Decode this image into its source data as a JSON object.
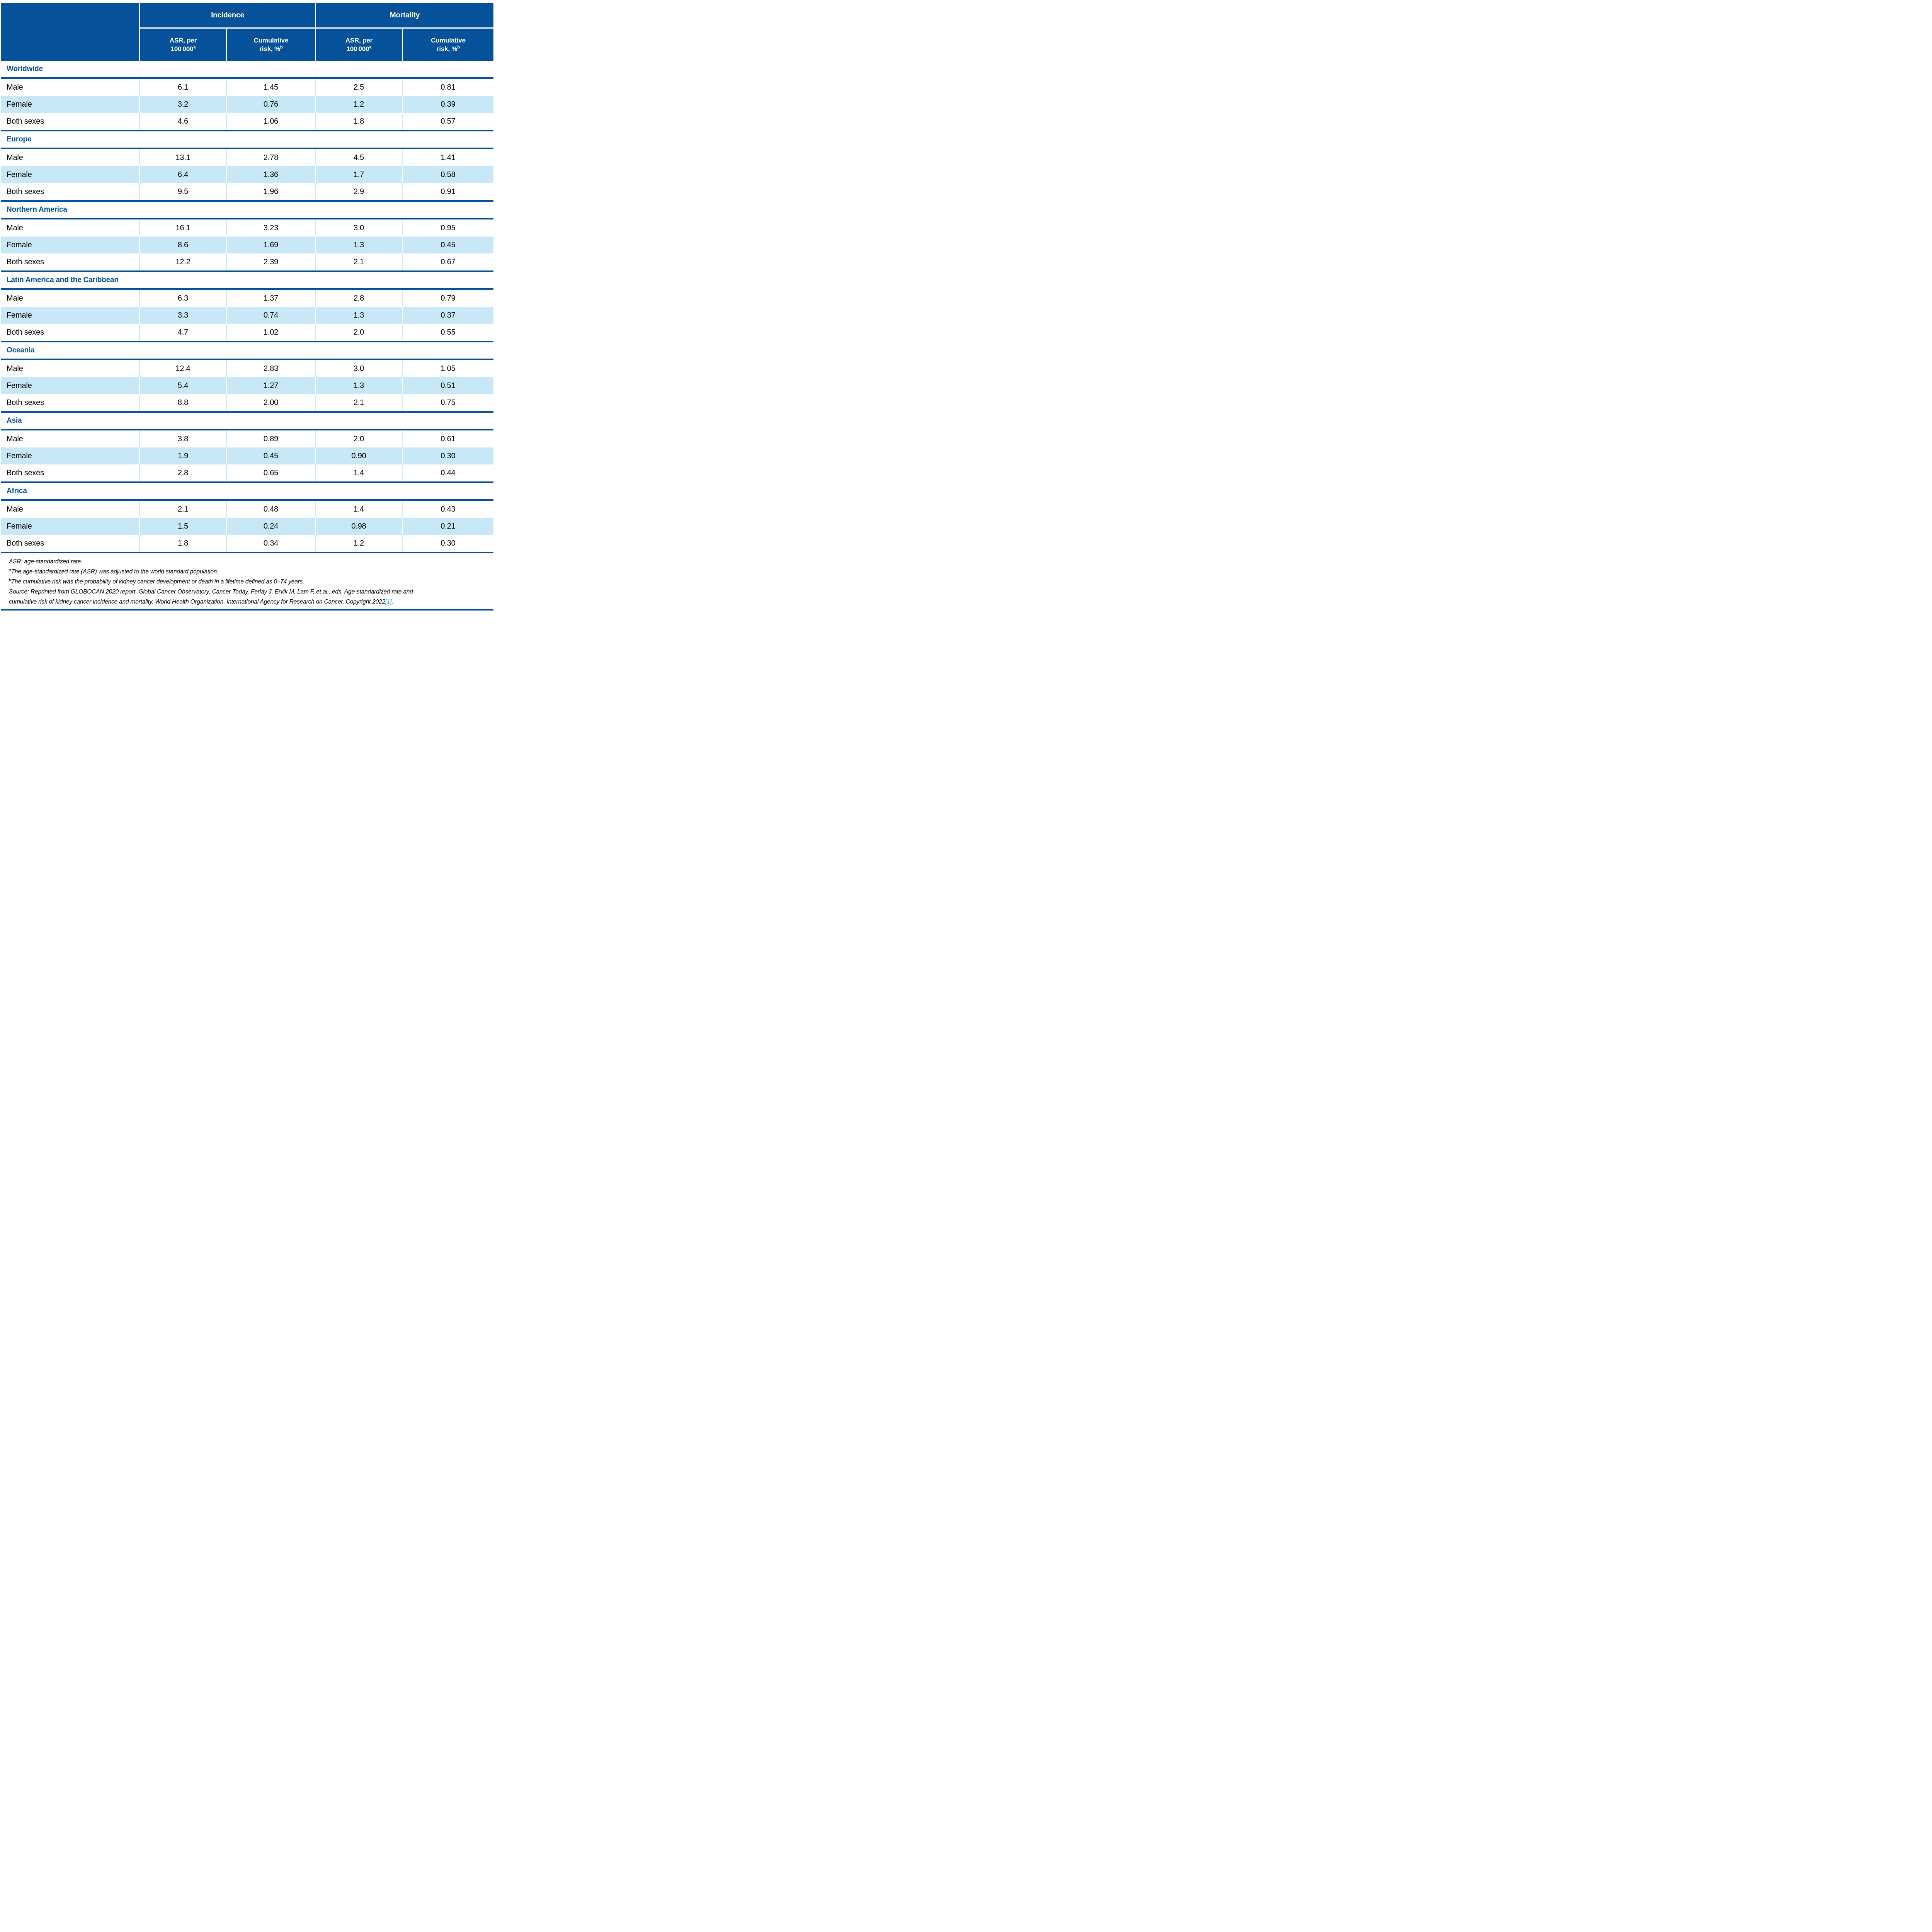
{
  "table": {
    "header": {
      "groups": [
        "Incidence",
        "Mortality"
      ],
      "sub": [
        {
          "line1": "ASR, per",
          "line2": "100 000",
          "sup": "a"
        },
        {
          "line1": "Cumulative",
          "line2": "risk, %",
          "sup": "b"
        },
        {
          "line1": "ASR, per",
          "line2": "100 000",
          "sup": "a"
        },
        {
          "line1": "Cumulative",
          "line2": "risk, %",
          "sup": "b"
        }
      ]
    },
    "sections": [
      {
        "title": "Worldwide",
        "rows": [
          {
            "label": "Male",
            "values": [
              "6.1",
              "1.45",
              "2.5",
              "0.81"
            ]
          },
          {
            "label": "Female",
            "values": [
              "3.2",
              "0.76",
              "1.2",
              "0.39"
            ]
          },
          {
            "label": "Both sexes",
            "values": [
              "4.6",
              "1.06",
              "1.8",
              "0.57"
            ]
          }
        ]
      },
      {
        "title": "Europe",
        "rows": [
          {
            "label": "Male",
            "values": [
              "13.1",
              "2.78",
              "4.5",
              "1.41"
            ]
          },
          {
            "label": "Female",
            "values": [
              "6.4",
              "1.36",
              "1.7",
              "0.58"
            ]
          },
          {
            "label": "Both sexes",
            "values": [
              "9.5",
              "1.96",
              "2.9",
              "0.91"
            ]
          }
        ]
      },
      {
        "title": "Northern America",
        "rows": [
          {
            "label": "Male",
            "values": [
              "16.1",
              "3.23",
              "3.0",
              "0.95"
            ]
          },
          {
            "label": "Female",
            "values": [
              "8.6",
              "1.69",
              "1.3",
              "0.45"
            ]
          },
          {
            "label": "Both sexes",
            "values": [
              "12.2",
              "2.39",
              "2.1",
              "0.67"
            ]
          }
        ]
      },
      {
        "title": "Latin America and the Caribbean",
        "rows": [
          {
            "label": "Male",
            "values": [
              "6.3",
              "1.37",
              "2.8",
              "0.79"
            ]
          },
          {
            "label": "Female",
            "values": [
              "3.3",
              "0.74",
              "1.3",
              "0.37"
            ]
          },
          {
            "label": "Both sexes",
            "values": [
              "4.7",
              "1.02",
              "2.0",
              "0.55"
            ]
          }
        ]
      },
      {
        "title": "Oceania",
        "rows": [
          {
            "label": "Male",
            "values": [
              "12.4",
              "2.83",
              "3.0",
              "1.05"
            ]
          },
          {
            "label": "Female",
            "values": [
              "5.4",
              "1.27",
              "1.3",
              "0.51"
            ]
          },
          {
            "label": "Both sexes",
            "values": [
              "8.8",
              "2.00",
              "2.1",
              "0.75"
            ]
          }
        ]
      },
      {
        "title": "Asia",
        "rows": [
          {
            "label": "Male",
            "values": [
              "3.8",
              "0.89",
              "2.0",
              "0.61"
            ]
          },
          {
            "label": "Female",
            "values": [
              "1.9",
              "0.45",
              "0.90",
              "0.30"
            ]
          },
          {
            "label": "Both sexes",
            "values": [
              "2.8",
              "0.65",
              "1.4",
              "0.44"
            ]
          }
        ]
      },
      {
        "title": "Africa",
        "rows": [
          {
            "label": "Male",
            "values": [
              "2.1",
              "0.48",
              "1.4",
              "0.43"
            ]
          },
          {
            "label": "Female",
            "values": [
              "1.5",
              "0.24",
              "0.98",
              "0.21"
            ]
          },
          {
            "label": "Both sexes",
            "values": [
              "1.8",
              "0.34",
              "1.2",
              "0.30"
            ]
          }
        ]
      }
    ],
    "footnotes": [
      {
        "pre": "",
        "text": "ASR: age-standardized rate."
      },
      {
        "pre": "a",
        "text": "The age-standardized rate (ASR) was adjusted to the world standard population."
      },
      {
        "pre": "b",
        "text": "The cumulative risk was the probability of kidney cancer development or death in a lifetime defined as 0–74 years."
      },
      {
        "pre": "",
        "text": "Source: Reprinted from GLOBOCAN 2020 report, Global Cancer Observatory, Cancer Today. Ferlay J, Ervik M, Lam F, et al., eds. Age-standardized rate and"
      },
      {
        "pre": "",
        "text": "cumulative risk of kidney cancer incidence and mortality. World Health Organization, International Agency for Research on Cancer, Copyright 2022",
        "link": "[1]",
        "after": "."
      }
    ]
  },
  "colors": {
    "header_blue": "#05529B",
    "row_alt_blue": "#C8E8F8",
    "separator_blue": "#CDEAF9",
    "section_title_blue": "#05529B",
    "citation_link_blue": "#29A9E1"
  }
}
